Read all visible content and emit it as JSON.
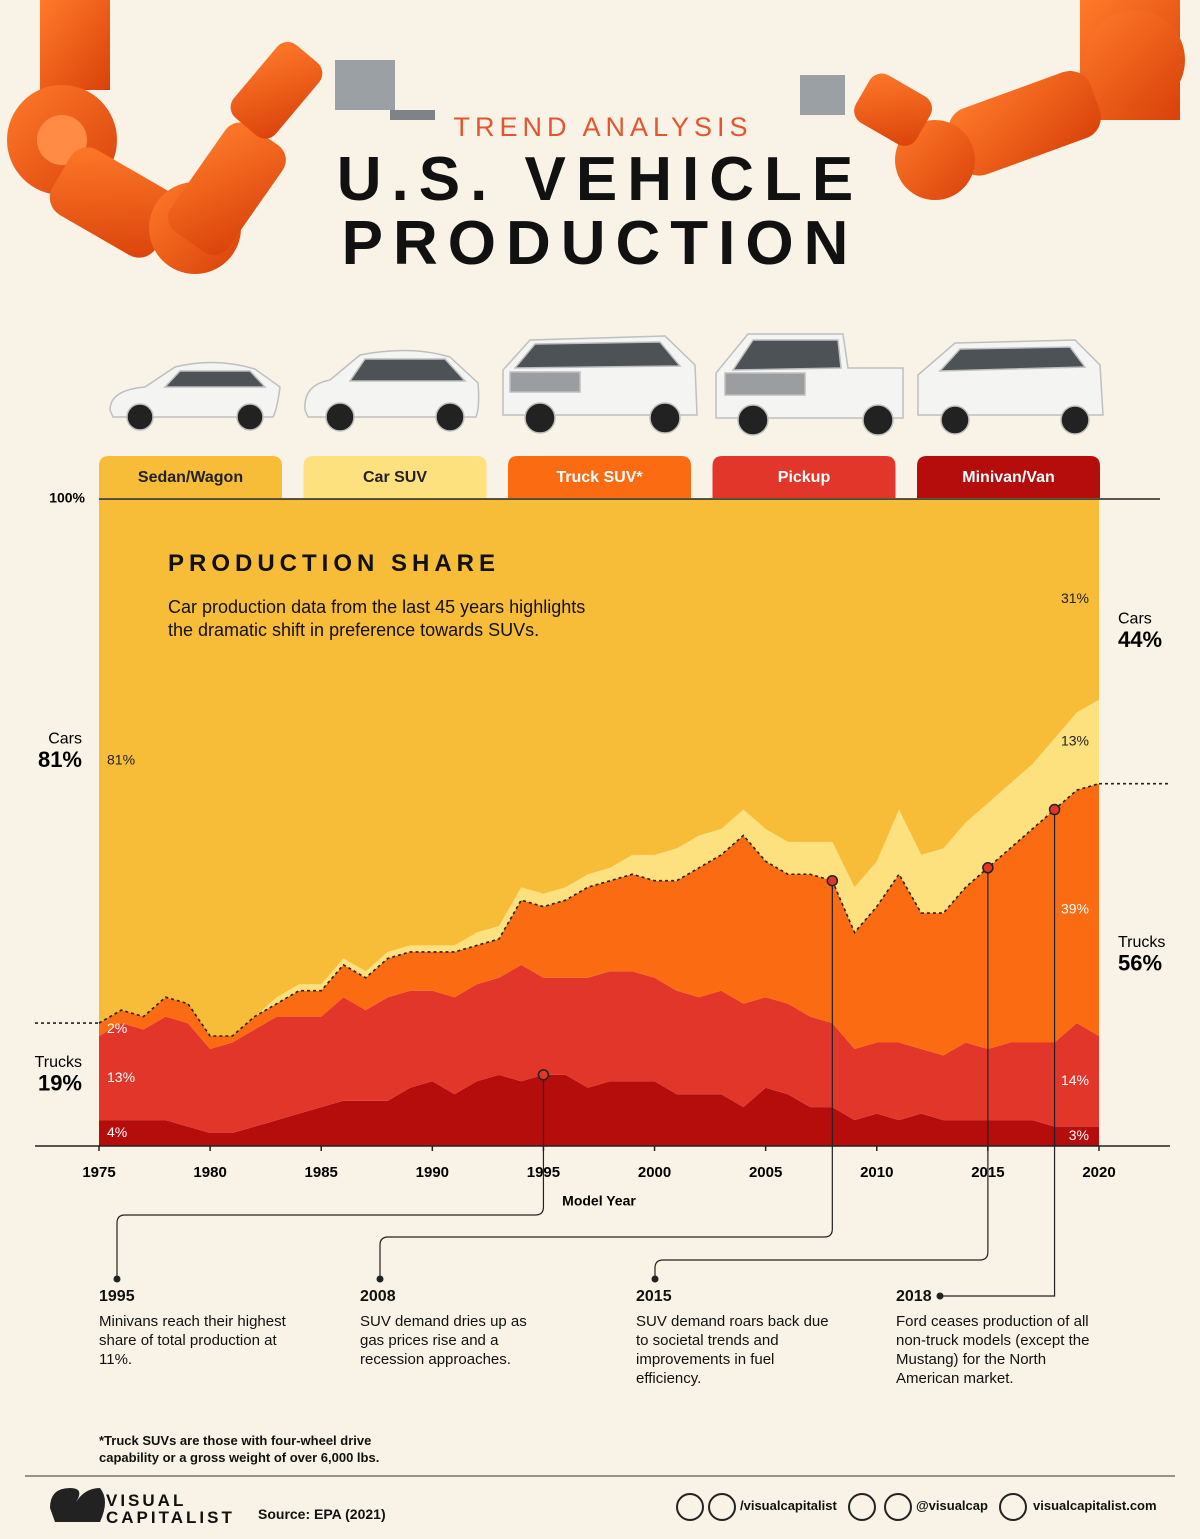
{
  "chart_data": {
    "type": "stacked_area",
    "kicker": "TREND ANALYSIS",
    "title": "U.S. VEHICLE PRODUCTION",
    "chart_title": "PRODUCTION SHARE",
    "subtitle": "Car production data from the last 45 years highlights the dramatic shift in preference towards SUVs.",
    "x_label": "Model Year",
    "x": [
      1975,
      1976,
      1977,
      1978,
      1979,
      1980,
      1981,
      1982,
      1983,
      1984,
      1985,
      1986,
      1987,
      1988,
      1989,
      1990,
      1991,
      1992,
      1993,
      1994,
      1995,
      1996,
      1997,
      1998,
      1999,
      2000,
      2001,
      2002,
      2003,
      2004,
      2005,
      2006,
      2007,
      2008,
      2009,
      2010,
      2011,
      2012,
      2013,
      2014,
      2015,
      2016,
      2017,
      2018,
      2019,
      2020
    ],
    "xlim": [
      1975,
      2020
    ],
    "xticks": [
      1975,
      1980,
      1985,
      1990,
      1995,
      2000,
      2005,
      2010,
      2015,
      2020
    ],
    "ylim": [
      0,
      100
    ],
    "yticks": [
      {
        "value": 100,
        "label": "100%"
      }
    ],
    "series": [
      {
        "name": "Sedan/Wagon",
        "color": "#f7bc38",
        "values": [
          81,
          79,
          80,
          77,
          78,
          83,
          83,
          80,
          77,
          75,
          75,
          71,
          73,
          70,
          69,
          69,
          69,
          67,
          66,
          60,
          61,
          60,
          58,
          57,
          55,
          55,
          54,
          52,
          51,
          48,
          51,
          53,
          53,
          53,
          60,
          56,
          48,
          55,
          54,
          50,
          47,
          44,
          41,
          37,
          33,
          31
        ],
        "value_labels": [
          "81%",
          null,
          null,
          null,
          null,
          null,
          null,
          null,
          null,
          null,
          null,
          null,
          null,
          null,
          null,
          null,
          null,
          null,
          null,
          null,
          null,
          null,
          null,
          null,
          null,
          null,
          null,
          null,
          null,
          null,
          null,
          null,
          null,
          null,
          null,
          null,
          null,
          null,
          null,
          null,
          null,
          null,
          null,
          null,
          null,
          "31%"
        ]
      },
      {
        "name": "Car SUV",
        "color": "#fde17f",
        "values": [
          0,
          0,
          0,
          0,
          0,
          0,
          0,
          0,
          1,
          1,
          1,
          1,
          1,
          1,
          1,
          1,
          1,
          2,
          2,
          2,
          2,
          2,
          2,
          2,
          3,
          4,
          5,
          5,
          4,
          4,
          5,
          5,
          5,
          6,
          7,
          7,
          10,
          9,
          10,
          10,
          10,
          10,
          10,
          11,
          12,
          13
        ],
        "value_labels": [
          null,
          null,
          null,
          null,
          null,
          null,
          null,
          null,
          null,
          null,
          null,
          null,
          null,
          null,
          null,
          null,
          null,
          null,
          null,
          null,
          null,
          null,
          null,
          null,
          null,
          null,
          null,
          null,
          null,
          null,
          null,
          null,
          null,
          null,
          null,
          null,
          null,
          null,
          null,
          null,
          null,
          null,
          null,
          null,
          null,
          "13%"
        ]
      },
      {
        "name": "Truck SUV*",
        "color": "#fb6b12",
        "values": [
          2,
          2,
          2,
          3,
          3,
          2,
          1,
          2,
          2,
          4,
          4,
          5,
          5,
          6,
          6,
          6,
          7,
          6,
          6,
          10,
          11,
          12,
          14,
          14,
          15,
          15,
          17,
          20,
          21,
          26,
          21,
          20,
          22,
          22,
          18,
          21,
          26,
          21,
          22,
          24,
          28,
          30,
          33,
          36,
          36,
          39
        ],
        "value_labels": [
          "2%",
          null,
          null,
          null,
          null,
          null,
          null,
          null,
          null,
          null,
          null,
          null,
          null,
          null,
          null,
          null,
          null,
          null,
          null,
          null,
          null,
          null,
          null,
          null,
          null,
          null,
          null,
          null,
          null,
          null,
          null,
          null,
          null,
          null,
          null,
          null,
          null,
          null,
          null,
          null,
          null,
          null,
          null,
          null,
          null,
          "39%"
        ]
      },
      {
        "name": "Pickup",
        "color": "#e3362b",
        "values": [
          13,
          15,
          14,
          16,
          16,
          13,
          14,
          15,
          16,
          15,
          14,
          16,
          14,
          16,
          15,
          14,
          15,
          15,
          15,
          18,
          15,
          15,
          17,
          17,
          17,
          16,
          16,
          15,
          16,
          16,
          14,
          14,
          14,
          13,
          11,
          11,
          12,
          10,
          10,
          12,
          11,
          12,
          12,
          13,
          16,
          14
        ],
        "value_labels": [
          "13%",
          null,
          null,
          null,
          null,
          null,
          null,
          null,
          null,
          null,
          null,
          null,
          null,
          null,
          null,
          null,
          null,
          null,
          null,
          null,
          null,
          null,
          null,
          null,
          null,
          null,
          null,
          null,
          null,
          null,
          null,
          null,
          null,
          null,
          null,
          null,
          null,
          null,
          null,
          null,
          null,
          null,
          null,
          null,
          null,
          "14%"
        ]
      },
      {
        "name": "Minivan/Van",
        "color": "#b50c0c",
        "values": [
          4,
          4,
          4,
          4,
          3,
          2,
          2,
          3,
          4,
          5,
          6,
          7,
          7,
          7,
          9,
          10,
          8,
          10,
          11,
          10,
          11,
          11,
          9,
          10,
          10,
          10,
          8,
          8,
          8,
          6,
          9,
          8,
          6,
          6,
          4,
          5,
          4,
          5,
          4,
          4,
          4,
          4,
          4,
          3,
          3,
          3
        ],
        "value_labels": [
          "4%",
          null,
          null,
          null,
          null,
          null,
          null,
          null,
          null,
          null,
          null,
          null,
          null,
          null,
          null,
          null,
          null,
          null,
          null,
          null,
          null,
          null,
          null,
          null,
          null,
          null,
          null,
          null,
          null,
          null,
          null,
          null,
          null,
          null,
          null,
          null,
          null,
          null,
          null,
          null,
          null,
          null,
          null,
          null,
          null,
          "3%"
        ]
      }
    ],
    "totals": [
      {
        "x": 1975,
        "items": [
          {
            "label": "Cars",
            "value": 81,
            "value_label": "81%"
          },
          {
            "label": "Trucks",
            "value": 19,
            "value_label": "19%"
          }
        ]
      },
      {
        "x": 2020,
        "items": [
          {
            "label": "Cars",
            "value": 44,
            "value_label": "44%"
          },
          {
            "label": "Trucks",
            "value": 56,
            "value_label": "56%"
          }
        ]
      }
    ],
    "annotations": [
      {
        "year": 1995,
        "text": "Minivans reach their highest share of total production at 11%."
      },
      {
        "year": 2008,
        "text": "SUV demand dries up as gas prices rise and a recession approaches."
      },
      {
        "year": 2015,
        "text": "SUV demand roars back due to societal trends and improvements in fuel efficiency."
      },
      {
        "year": 2018,
        "text": "Ford ceases production of all non-truck models (except the Mustang) for the North American market."
      }
    ],
    "footnote": "*Truck SUVs are those with four-wheel drive capability or a gross weight of over 6,000 lbs.",
    "source": "Source: EPA (2021)",
    "brand": [
      "VISUAL",
      "CAPITALIST"
    ],
    "social": [
      "/visualcapitalist",
      "@visualcap",
      "visualcapitalist.com"
    ]
  }
}
